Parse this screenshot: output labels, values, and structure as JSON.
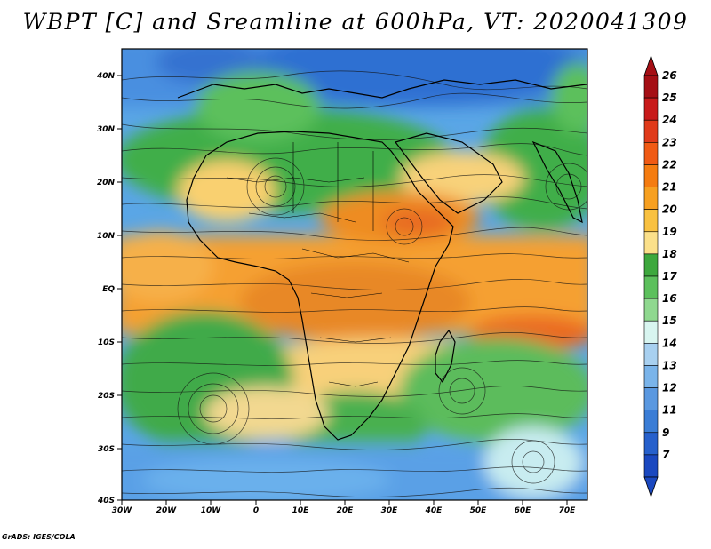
{
  "title": "WBPT [C] and Sreamline at 600hPa, VT: 2020041309",
  "lat_labels": [
    "40N",
    "30N",
    "20N",
    "10N",
    "EQ",
    "10S",
    "20S",
    "30S",
    "40S"
  ],
  "lon_labels": [
    "30W",
    "20W",
    "10W",
    "0",
    "10E",
    "20E",
    "30E",
    "40E",
    "50E",
    "60E",
    "70E"
  ],
  "colorbar": {
    "levels": [
      "26",
      "25",
      "24",
      "23",
      "22",
      "21",
      "20",
      "19",
      "18",
      "17",
      "16",
      "15",
      "14",
      "13",
      "12",
      "11",
      "9",
      "7"
    ],
    "colors": [
      "#a50f15",
      "#c81a1a",
      "#e03a1a",
      "#f05a14",
      "#f57c10",
      "#f7a020",
      "#f9c140",
      "#fbe08a",
      "#3da83d",
      "#5cc05c",
      "#8fd88f",
      "#d8f5f0",
      "#a8d0f0",
      "#7ab4ea",
      "#5a98e0",
      "#3a7dd6",
      "#2660cc",
      "#1a48c0"
    ]
  },
  "credit": "GrADS: IGES/COLA"
}
